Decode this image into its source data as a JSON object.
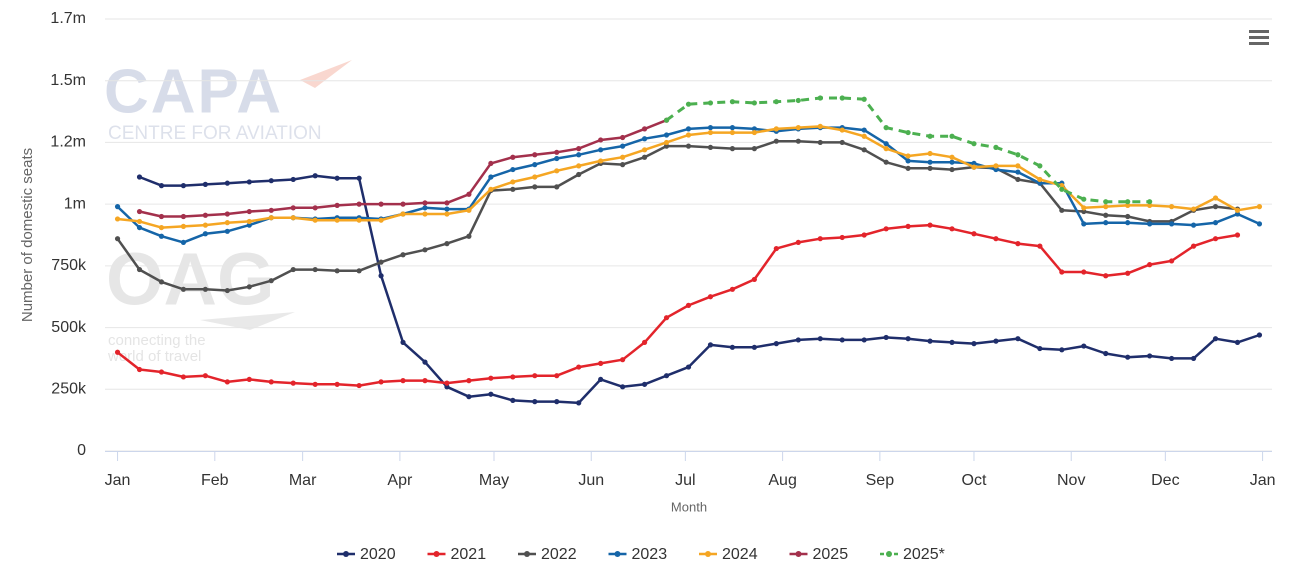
{
  "chart_data": {
    "type": "line",
    "y_label": "Number of domestic seats",
    "x_label": "Month",
    "watermark": {
      "capa": "CAPA",
      "capa_sub": "CENTRE FOR AVIATION",
      "oag": "OAG",
      "oag_sub": [
        "connecting the",
        "world of travel"
      ]
    },
    "x": [
      0,
      7,
      14,
      21,
      28,
      35,
      42,
      49,
      56,
      63,
      70,
      77,
      84,
      91,
      98,
      105,
      112,
      119,
      126,
      133,
      140,
      147,
      154,
      161,
      168,
      175,
      182,
      189,
      196,
      203,
      210,
      217,
      224,
      231,
      238,
      245,
      252,
      259,
      266,
      273,
      280,
      287,
      294,
      301,
      308,
      315,
      322,
      329,
      336,
      343,
      350,
      357,
      364
    ],
    "xlim": [
      -4,
      368
    ],
    "xticks": [
      {
        "value": 0,
        "label": "Jan"
      },
      {
        "value": 31,
        "label": "Feb"
      },
      {
        "value": 59,
        "label": "Mar"
      },
      {
        "value": 90,
        "label": "Apr"
      },
      {
        "value": 120,
        "label": "May"
      },
      {
        "value": 151,
        "label": "Jun"
      },
      {
        "value": 181,
        "label": "Jul"
      },
      {
        "value": 212,
        "label": "Aug"
      },
      {
        "value": 243,
        "label": "Sep"
      },
      {
        "value": 273,
        "label": "Oct"
      },
      {
        "value": 304,
        "label": "Nov"
      },
      {
        "value": 334,
        "label": "Dec"
      },
      {
        "value": 365,
        "label": "Jan"
      }
    ],
    "ylim": [
      0,
      1750000
    ],
    "yticks": [
      0,
      {
        "value": 250000,
        "label": "250k"
      },
      {
        "value": 500000,
        "label": "500k"
      },
      {
        "value": 750000,
        "label": "750k"
      },
      {
        "value": 1000000,
        "label": "1m"
      },
      {
        "value": 1250000,
        "label": "1.2m"
      },
      {
        "value": 1500000,
        "label": "1.5m"
      },
      {
        "value": 1750000,
        "label": "1.7m"
      }
    ],
    "grid": true,
    "legend": "bottom",
    "series": [
      {
        "name": "2020",
        "color": "#1f2e6b",
        "dashed": false,
        "values": [
          null,
          1110000,
          1075000,
          1075000,
          1080000,
          1085000,
          1090000,
          1095000,
          1100000,
          1115000,
          1105000,
          1105000,
          710000,
          440000,
          360000,
          260000,
          220000,
          230000,
          205000,
          200000,
          200000,
          195000,
          290000,
          260000,
          270000,
          305000,
          340000,
          430000,
          420000,
          420000,
          435000,
          450000,
          455000,
          450000,
          450000,
          460000,
          455000,
          445000,
          440000,
          435000,
          445000,
          455000,
          415000,
          410000,
          425000,
          395000,
          380000,
          385000,
          375000,
          375000,
          455000,
          440000,
          470000
        ]
      },
      {
        "name": "2021",
        "color": "#e3242b",
        "dashed": false,
        "values": [
          400000,
          330000,
          320000,
          300000,
          305000,
          280000,
          290000,
          280000,
          275000,
          270000,
          270000,
          265000,
          280000,
          285000,
          285000,
          275000,
          285000,
          295000,
          300000,
          305000,
          305000,
          340000,
          355000,
          370000,
          440000,
          540000,
          590000,
          625000,
          655000,
          695000,
          820000,
          845000,
          860000,
          865000,
          875000,
          900000,
          910000,
          915000,
          900000,
          880000,
          860000,
          840000,
          830000,
          725000,
          725000,
          710000,
          720000,
          755000,
          770000,
          830000,
          860000,
          875000,
          null
        ]
      },
      {
        "name": "2022",
        "color": "#505050",
        "dashed": false,
        "values": [
          860000,
          735000,
          685000,
          655000,
          655000,
          650000,
          665000,
          690000,
          735000,
          735000,
          730000,
          730000,
          765000,
          795000,
          815000,
          840000,
          870000,
          1055000,
          1060000,
          1070000,
          1070000,
          1120000,
          1165000,
          1160000,
          1190000,
          1235000,
          1235000,
          1230000,
          1225000,
          1225000,
          1255000,
          1255000,
          1250000,
          1250000,
          1220000,
          1170000,
          1145000,
          1145000,
          1140000,
          1150000,
          1145000,
          1100000,
          1085000,
          975000,
          970000,
          955000,
          950000,
          930000,
          930000,
          975000,
          990000,
          980000,
          null
        ]
      },
      {
        "name": "2023",
        "color": "#1565a8",
        "dashed": false,
        "values": [
          990000,
          905000,
          870000,
          845000,
          880000,
          890000,
          915000,
          945000,
          945000,
          940000,
          945000,
          945000,
          940000,
          960000,
          985000,
          980000,
          980000,
          1110000,
          1140000,
          1160000,
          1185000,
          1200000,
          1220000,
          1235000,
          1265000,
          1280000,
          1305000,
          1310000,
          1310000,
          1305000,
          1295000,
          1305000,
          1310000,
          1310000,
          1300000,
          1245000,
          1175000,
          1170000,
          1170000,
          1165000,
          1140000,
          1130000,
          1085000,
          1085000,
          920000,
          925000,
          925000,
          920000,
          920000,
          915000,
          925000,
          960000,
          920000
        ]
      },
      {
        "name": "2024",
        "color": "#f5a623",
        "dashed": false,
        "values": [
          940000,
          930000,
          905000,
          910000,
          915000,
          925000,
          930000,
          945000,
          945000,
          935000,
          935000,
          935000,
          935000,
          960000,
          960000,
          960000,
          975000,
          1060000,
          1090000,
          1110000,
          1135000,
          1155000,
          1175000,
          1190000,
          1220000,
          1250000,
          1280000,
          1290000,
          1290000,
          1290000,
          1305000,
          1310000,
          1315000,
          1300000,
          1275000,
          1225000,
          1195000,
          1205000,
          1190000,
          1150000,
          1155000,
          1155000,
          1100000,
          1075000,
          985000,
          990000,
          995000,
          995000,
          990000,
          980000,
          1025000,
          975000,
          990000
        ]
      },
      {
        "name": "2025",
        "color": "#a3304c",
        "dashed": false,
        "values": [
          null,
          970000,
          950000,
          950000,
          955000,
          960000,
          970000,
          975000,
          985000,
          985000,
          995000,
          1000000,
          1000000,
          1000000,
          1005000,
          1005000,
          1040000,
          1165000,
          1190000,
          1200000,
          1210000,
          1225000,
          1260000,
          1270000,
          1305000,
          1340000,
          null,
          null,
          null,
          null,
          null,
          null,
          null,
          null,
          null,
          null,
          null,
          null,
          null,
          null,
          null,
          null,
          null,
          null,
          null,
          null,
          null,
          null,
          null,
          null,
          null,
          null,
          null
        ]
      },
      {
        "name": "2025*",
        "color": "#4cb050",
        "dashed": true,
        "values": [
          null,
          null,
          null,
          null,
          null,
          null,
          null,
          null,
          null,
          null,
          null,
          null,
          null,
          null,
          null,
          null,
          null,
          null,
          null,
          null,
          null,
          null,
          null,
          null,
          null,
          1340000,
          1405000,
          1410000,
          1415000,
          1410000,
          1415000,
          1420000,
          1430000,
          1430000,
          1425000,
          1310000,
          1290000,
          1275000,
          1275000,
          1245000,
          1230000,
          1200000,
          1155000,
          1060000,
          1020000,
          1010000,
          1010000,
          1010000,
          null,
          null,
          null,
          null,
          null
        ]
      }
    ]
  }
}
